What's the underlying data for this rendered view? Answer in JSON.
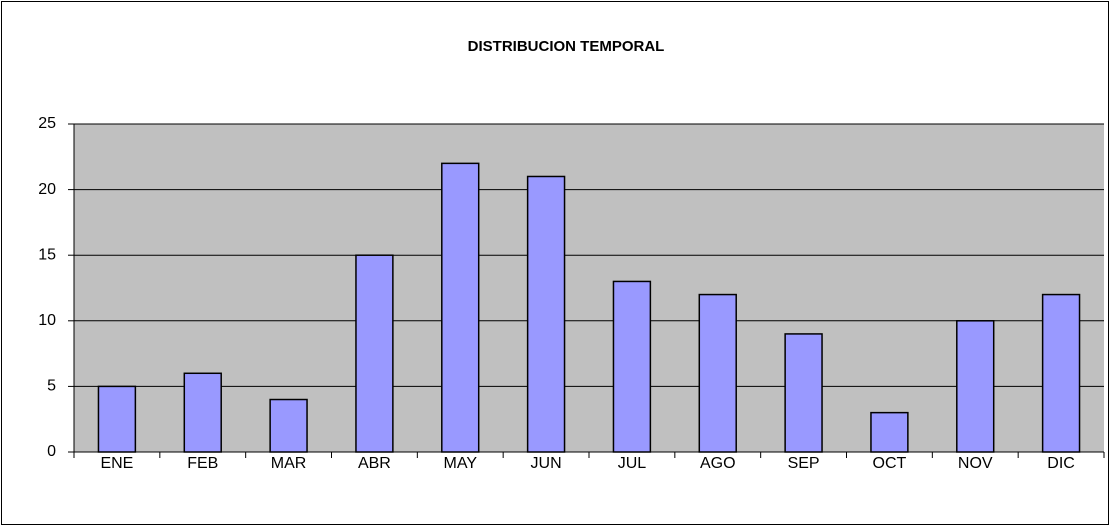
{
  "chart_data": {
    "type": "bar",
    "title": "DISTRIBUCION TEMPORAL",
    "categories": [
      "ENE",
      "FEB",
      "MAR",
      "ABR",
      "MAY",
      "JUN",
      "JUL",
      "AGO",
      "SEP",
      "OCT",
      "NOV",
      "DIC"
    ],
    "values": [
      5,
      6,
      4,
      15,
      22,
      21,
      13,
      12,
      9,
      3,
      10,
      12
    ],
    "color": "#9999ff",
    "ylim": [
      0,
      25
    ],
    "yticks": [
      0,
      5,
      10,
      15,
      20,
      25
    ],
    "grid": true
  }
}
